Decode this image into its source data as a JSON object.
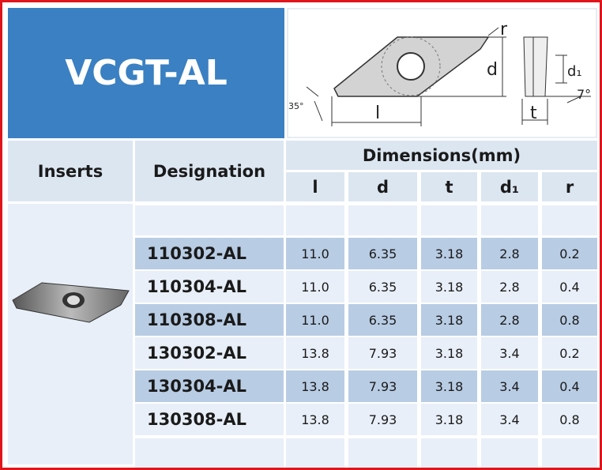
{
  "header": {
    "title": "VCGT-AL"
  },
  "diagram": {
    "labels": {
      "r": "r",
      "d": "d",
      "d1": "d₁",
      "angle7": "7°",
      "angle35": "35°",
      "l": "l",
      "t": "t"
    }
  },
  "table": {
    "headers": {
      "inserts": "Inserts",
      "designation": "Designation",
      "dimensions": "Dimensions(mm)",
      "columns": [
        "l",
        "d",
        "t",
        "d₁",
        "r"
      ]
    },
    "rows": [
      [
        "110302-AL",
        "11.0",
        "6.35",
        "3.18",
        "2.8",
        "0.2"
      ],
      [
        "110304-AL",
        "11.0",
        "6.35",
        "3.18",
        "2.8",
        "0.4"
      ],
      [
        "110308-AL",
        "11.0",
        "6.35",
        "3.18",
        "2.8",
        "0.8"
      ],
      [
        "130302-AL",
        "13.8",
        "7.93",
        "3.18",
        "3.4",
        "0.2"
      ],
      [
        "130304-AL",
        "13.8",
        "7.93",
        "3.18",
        "3.4",
        "0.4"
      ],
      [
        "130308-AL",
        "13.8",
        "7.93",
        "3.18",
        "3.4",
        "0.8"
      ]
    ]
  }
}
